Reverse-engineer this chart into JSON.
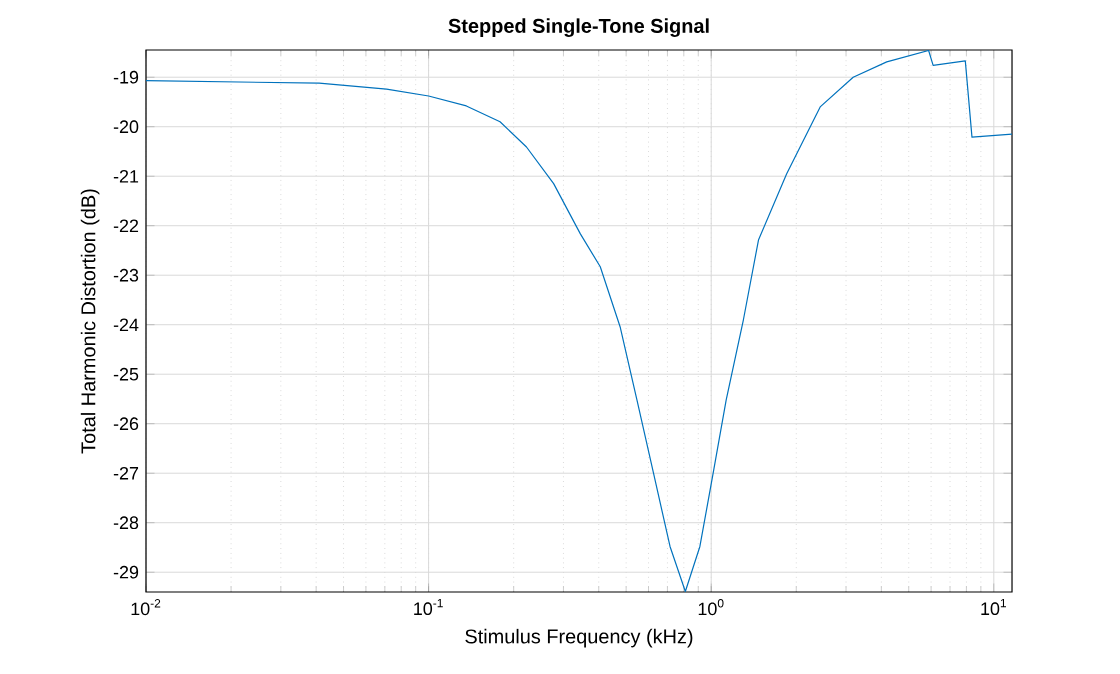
{
  "chart_data": {
    "type": "line",
    "title": "**Stepped Single-Tone Signal**",
    "xlabel": "Stimulus Frequency (kHz)",
    "ylabel": "Total Harmonic Distortion (dB)",
    "log": "x",
    "grid": true,
    "marker": "none",
    "line_style": "solid",
    "xlim": [
      0.01,
      11.6
    ],
    "ylim": [
      -29.4,
      -18.45
    ],
    "xticks": [
      {
        "value": 0.01,
        "label": "10$^{-2}$"
      },
      {
        "value": 0.1,
        "label": "10$^{-1}$"
      },
      {
        "value": 1,
        "label": "10$^{0}$"
      },
      {
        "value": 10,
        "label": "10$^{1}$"
      }
    ],
    "yticks": [
      -29,
      -28,
      -27,
      -26,
      -25,
      -24,
      -23,
      -22,
      -21,
      -20,
      -19
    ],
    "series": [
      {
        "color": "#0072bd",
        "x": [
          0.01,
          0.041,
          0.071,
          0.1,
          0.136,
          0.179,
          0.222,
          0.277,
          0.344,
          0.405,
          0.476,
          0.546,
          0.625,
          0.715,
          0.81,
          0.912,
          1.016,
          1.13,
          1.3,
          1.47,
          1.85,
          2.43,
          3.18,
          4.18,
          5.88,
          6.1,
          7.93,
          8.37,
          11.6
        ],
        "values": [
          -19.07,
          -19.12,
          -19.24,
          -19.38,
          -19.58,
          -19.9,
          -20.41,
          -21.15,
          -22.16,
          -22.83,
          -24.04,
          -25.52,
          -27.0,
          -28.48,
          -29.39,
          -28.48,
          -27.0,
          -25.52,
          -23.9,
          -22.29,
          -20.95,
          -19.6,
          -19.0,
          -18.69,
          -18.46,
          -18.76,
          -18.67,
          -20.21,
          -20.15
        ]
      }
    ]
  }
}
